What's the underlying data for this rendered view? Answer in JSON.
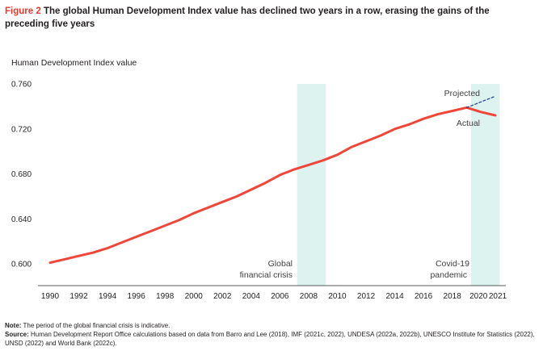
{
  "figure": {
    "number": "Figure 2",
    "title": "The global Human Development Index value has declined two years in a row, erasing the gains of the preceding five years"
  },
  "chart_data": {
    "type": "line",
    "title": "The global Human Development Index value has declined two years in a row, erasing the gains of the preceding five years",
    "ylabel": "Human Development Index value",
    "xlabel": "",
    "ylim": [
      0.6,
      0.76
    ],
    "xlim": [
      1990,
      2021
    ],
    "yticks": [
      "0.600",
      "0.640",
      "0.680",
      "0.720",
      "0.760"
    ],
    "yticks_values": [
      0.6,
      0.64,
      0.68,
      0.72,
      0.76
    ],
    "xticks": [
      1990,
      1992,
      1994,
      1996,
      1998,
      2000,
      2002,
      2004,
      2006,
      2008,
      2010,
      2012,
      2014,
      2016,
      2018,
      2020,
      2021
    ],
    "grid": false,
    "series": [
      {
        "name": "Actual",
        "color": "#f0463a",
        "x": [
          1990,
          1991,
          1992,
          1993,
          1994,
          1995,
          1996,
          1997,
          1998,
          1999,
          2000,
          2001,
          2002,
          2003,
          2004,
          2005,
          2006,
          2007,
          2008,
          2009,
          2010,
          2011,
          2012,
          2013,
          2014,
          2015,
          2016,
          2017,
          2018,
          2019,
          2020,
          2021
        ],
        "values": [
          0.601,
          0.604,
          0.607,
          0.61,
          0.614,
          0.619,
          0.624,
          0.629,
          0.634,
          0.639,
          0.645,
          0.65,
          0.655,
          0.66,
          0.666,
          0.672,
          0.679,
          0.684,
          0.688,
          0.692,
          0.697,
          0.704,
          0.709,
          0.714,
          0.72,
          0.724,
          0.729,
          0.733,
          0.736,
          0.739,
          0.735,
          0.732
        ]
      },
      {
        "name": "Projected",
        "color": "#1c3f94",
        "style": "dashed",
        "x": [
          2019,
          2020,
          2021
        ],
        "values": [
          0.739,
          0.744,
          0.749
        ]
      }
    ],
    "shaded_regions": [
      {
        "label": "Global\nfinancial crisis",
        "x_start": 2007.2,
        "x_end": 2009.2,
        "color": "#ddf3f0"
      },
      {
        "label": "Covid-19\npandemic",
        "x_start": 2019.3,
        "x_end": 2021.3,
        "color": "#ddf3f0"
      }
    ],
    "annotations": {
      "projected_label": "Projected",
      "actual_label": "Actual",
      "financial_crisis": [
        "Global",
        "financial crisis"
      ],
      "covid": [
        "Covid-19",
        "pandemic"
      ]
    }
  },
  "notes": {
    "note_label": "Note:",
    "note_text": " The period of the global financial crisis is indicative.",
    "source_label": "Source:",
    "source_text": " Human Development Report Office calculations based on data from Barro and Lee (2018), IMF (2021c, 2022), UNDESA (2022a, 2022b), UNESCO Institute for Statistics (2022), UNSD (2022) and World Bank (2022c)."
  }
}
